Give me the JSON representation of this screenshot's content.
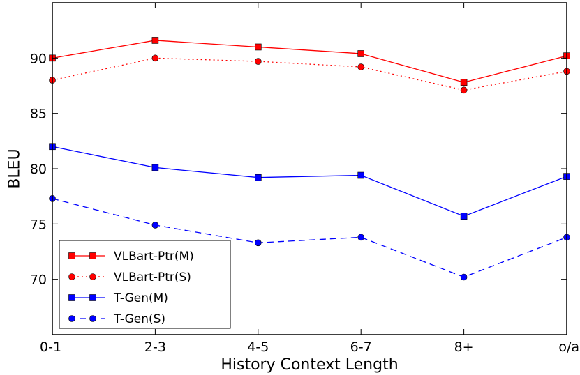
{
  "chart_data": {
    "type": "line",
    "title": "",
    "xlabel": "History Context Length",
    "ylabel": "BLEU",
    "categories": [
      "0-1",
      "2-3",
      "4-5",
      "6-7",
      "8+",
      "o/a"
    ],
    "yticks": [
      70,
      75,
      80,
      85,
      90
    ],
    "ylim": [
      65,
      95
    ],
    "grid": false,
    "legend_position": "lower-left",
    "series": [
      {
        "name": "VLBart-Ptr(M)",
        "color": "#ff0000",
        "marker": "square",
        "linestyle": "solid",
        "values": [
          90.0,
          91.6,
          91.0,
          90.4,
          87.8,
          90.2
        ]
      },
      {
        "name": "VLBart-Ptr(S)",
        "color": "#ff0000",
        "marker": "circle",
        "linestyle": "dotted",
        "values": [
          88.0,
          90.0,
          89.7,
          89.2,
          87.1,
          88.8
        ]
      },
      {
        "name": "T-Gen(M)",
        "color": "#0000ff",
        "marker": "square",
        "linestyle": "solid",
        "values": [
          82.0,
          80.1,
          79.2,
          79.4,
          75.7,
          79.3
        ]
      },
      {
        "name": "T-Gen(S)",
        "color": "#0000ff",
        "marker": "circle",
        "linestyle": "dashed",
        "values": [
          77.3,
          74.9,
          73.3,
          73.8,
          70.2,
          73.8
        ]
      }
    ]
  }
}
